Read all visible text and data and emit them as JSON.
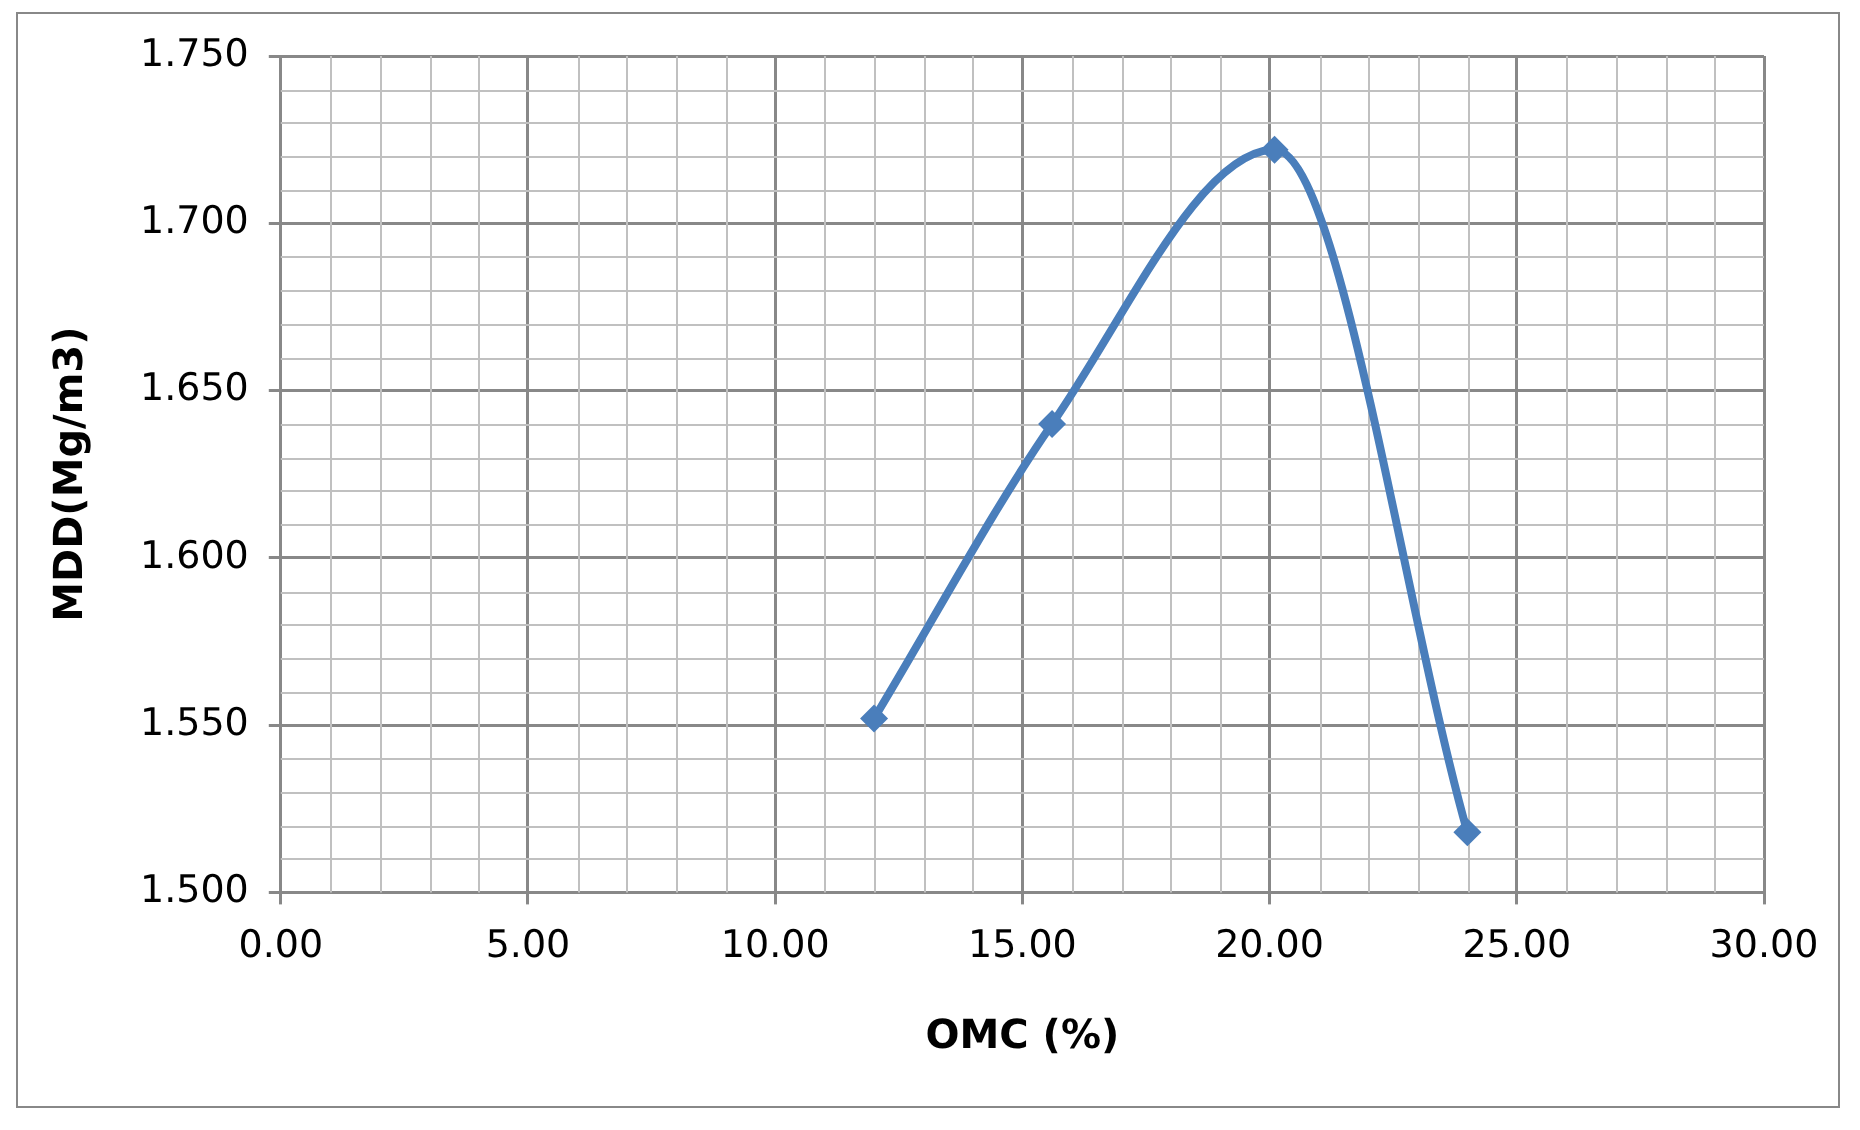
{
  "chart_data": {
    "type": "line",
    "xlabel": "OMC (%)",
    "ylabel": "MDD(Mg/m3)",
    "x": [
      12.0,
      15.6,
      20.1,
      24.0
    ],
    "series": [
      {
        "color": "#4a7ebb",
        "values": [
          1.552,
          1.64,
          1.722,
          1.518
        ]
      }
    ],
    "xlim": [
      0,
      30
    ],
    "xticks": [
      {
        "value": 0,
        "label": "0.00"
      },
      {
        "value": 5,
        "label": "5.00"
      },
      {
        "value": 10,
        "label": "10.00"
      },
      {
        "value": 15,
        "label": "15.00"
      },
      {
        "value": 20,
        "label": "20.00"
      },
      {
        "value": 25,
        "label": "25.00"
      },
      {
        "value": 30,
        "label": "30.00"
      }
    ],
    "ylim": [
      1.5,
      1.75
    ],
    "yticks": [
      {
        "value": 1.5,
        "label": "1.500"
      },
      {
        "value": 1.55,
        "label": "1.550"
      },
      {
        "value": 1.6,
        "label": "1.600"
      },
      {
        "value": 1.65,
        "label": "1.650"
      },
      {
        "value": 1.7,
        "label": "1.700"
      },
      {
        "value": 1.75,
        "label": "1.750"
      }
    ],
    "grid": true,
    "legend": false,
    "marker": "diamond",
    "line_style": "solid"
  }
}
